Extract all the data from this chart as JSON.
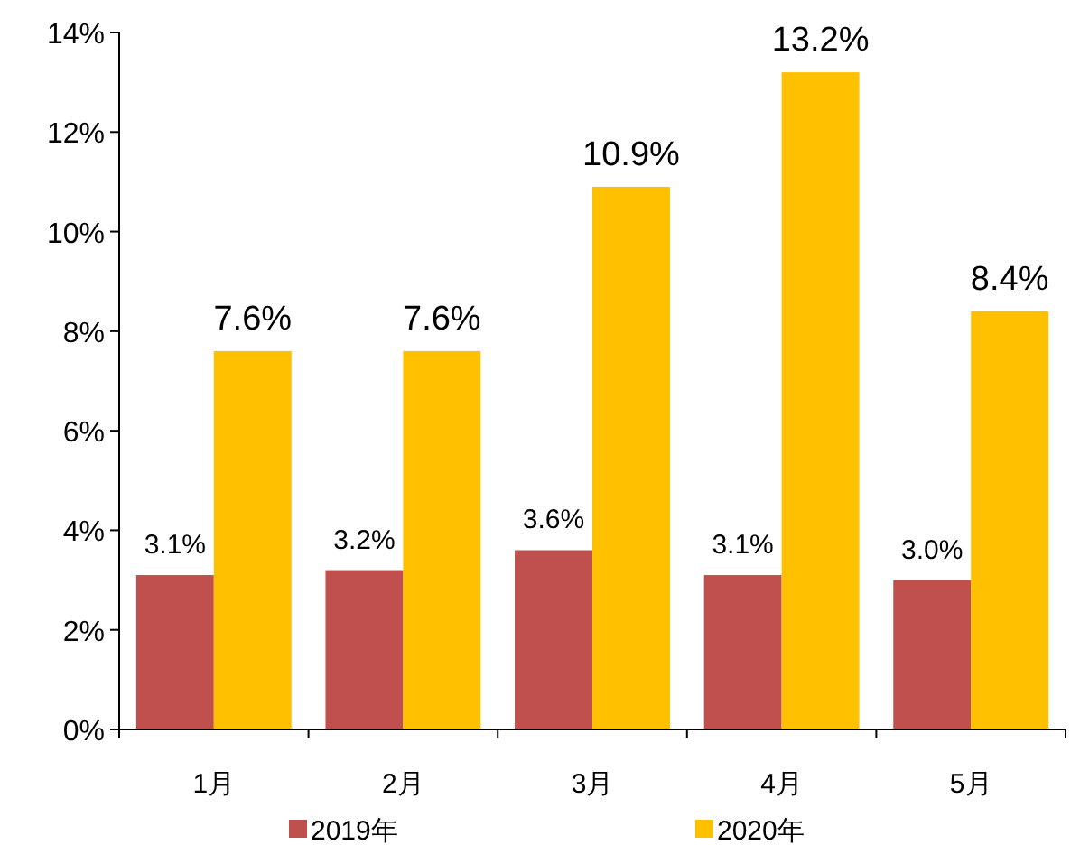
{
  "chart_data": {
    "type": "bar",
    "categories": [
      "1月",
      "2月",
      "3月",
      "4月",
      "5月"
    ],
    "series": [
      {
        "name": "2019年",
        "color": "#c0504d",
        "values": [
          3.1,
          3.2,
          3.6,
          3.1,
          3.0
        ],
        "value_labels": [
          "3.1%",
          "3.2%",
          "3.6%",
          "3.1%",
          "3.0%"
        ]
      },
      {
        "name": "2020年",
        "color": "#ffc000",
        "values": [
          7.6,
          7.6,
          10.9,
          13.2,
          8.4
        ],
        "value_labels": [
          "7.6%",
          "7.6%",
          "10.9%",
          "13.2%",
          "8.4%"
        ]
      }
    ],
    "ylim": [
      0,
      14
    ],
    "yticks": [
      {
        "value": 0,
        "label": "0%"
      },
      {
        "value": 2,
        "label": "2%"
      },
      {
        "value": 4,
        "label": "4%"
      },
      {
        "value": 6,
        "label": "6%"
      },
      {
        "value": 8,
        "label": "8%"
      },
      {
        "value": 10,
        "label": "10%"
      },
      {
        "value": 12,
        "label": "12%"
      },
      {
        "value": 14,
        "label": "14%"
      }
    ],
    "grid": false,
    "legend": "bottom"
  }
}
